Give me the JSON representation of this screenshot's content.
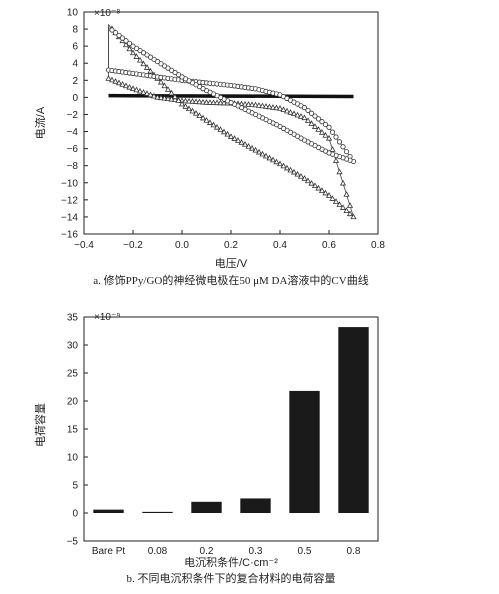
{
  "chart_data": [
    {
      "type": "line",
      "title": "",
      "xlabel": "电压/V",
      "ylabel": "电流/A",
      "scale_note": "×10⁻⁸",
      "caption": "a. 修饰PPy/GO的神经微电极在50 μM DA溶液中的CV曲线",
      "xlim": [
        -0.4,
        0.8
      ],
      "ylim": [
        -16,
        10
      ],
      "x_ticks": [
        "−0.4",
        "−0.2",
        "0.0",
        "0.2",
        "0.4",
        "0.6",
        "0.8"
      ],
      "y_ticks": [
        "10",
        "8",
        "6",
        "4",
        "2",
        "0",
        "−2",
        "−4",
        "−6",
        "−8",
        "−10",
        "−12",
        "−14",
        "−16"
      ],
      "grid": false,
      "series": [
        {
          "color": "#111111",
          "x": [
            -0.3,
            0.7
          ],
          "y": [
            0.2,
            0.1
          ]
        },
        {
          "marker": "open-triangle",
          "x": [
            -0.3,
            -0.2,
            -0.1,
            0.0,
            0.1,
            0.2,
            0.3,
            0.4,
            0.5,
            0.6,
            0.7,
            0.6,
            0.5,
            0.4,
            0.3,
            0.2,
            0.1,
            0.0,
            -0.1,
            -0.2,
            -0.3
          ],
          "y": [
            2.2,
            1.0,
            0.0,
            -0.4,
            -0.6,
            -0.7,
            -0.9,
            -1.3,
            -2.4,
            -4.8,
            -14.0,
            -11.5,
            -9.5,
            -7.8,
            -6.2,
            -4.6,
            -2.7,
            -0.8,
            2.2,
            5.2,
            8.5
          ]
        },
        {
          "marker": "open-circle",
          "x": [
            -0.3,
            -0.2,
            -0.1,
            0.0,
            0.1,
            0.2,
            0.3,
            0.4,
            0.5,
            0.6,
            0.7,
            0.6,
            0.5,
            0.4,
            0.3,
            0.2,
            0.1,
            0.0,
            -0.1,
            -0.2,
            -0.3
          ],
          "y": [
            3.2,
            2.8,
            2.4,
            2.0,
            1.7,
            1.4,
            1.0,
            0.3,
            -1.2,
            -3.5,
            -7.5,
            -6.5,
            -5.0,
            -3.4,
            -2.0,
            -0.6,
            0.8,
            2.4,
            4.2,
            6.0,
            8.2
          ]
        }
      ]
    },
    {
      "type": "bar",
      "title": "",
      "xlabel": "电沉积条件/C·cm⁻²",
      "ylabel": "电荷容量",
      "scale_note": "×10⁻⁹",
      "caption": "b. 不同电沉积条件下的复合材料的电荷容量",
      "categories": [
        "Bare Pt",
        "0.08",
        "0.2",
        "0.3",
        "0.5",
        "0.8"
      ],
      "values": [
        0.6,
        0.2,
        2.0,
        2.6,
        21.8,
        33.2
      ],
      "ylim": [
        -5,
        35
      ],
      "y_ticks": [
        "35",
        "30",
        "25",
        "20",
        "15",
        "10",
        "5",
        "0",
        "−5"
      ],
      "bar_color": "#1a1a1a",
      "grid": false
    }
  ]
}
